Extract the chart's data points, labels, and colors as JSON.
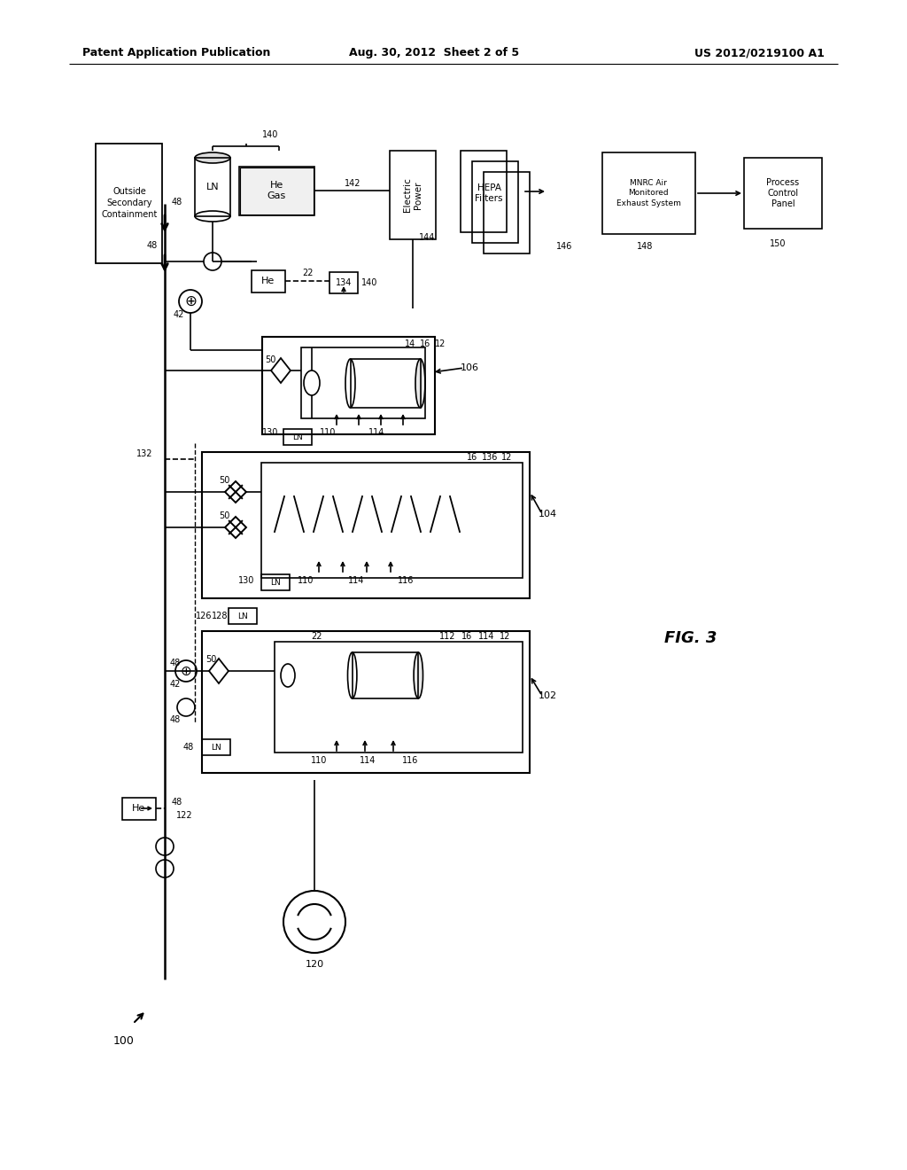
{
  "header_left": "Patent Application Publication",
  "header_center": "Aug. 30, 2012  Sheet 2 of 5",
  "header_right": "US 2012/0219100 A1",
  "fig_label": "FIG. 3",
  "bg": "#ffffff",
  "black": "#000000"
}
